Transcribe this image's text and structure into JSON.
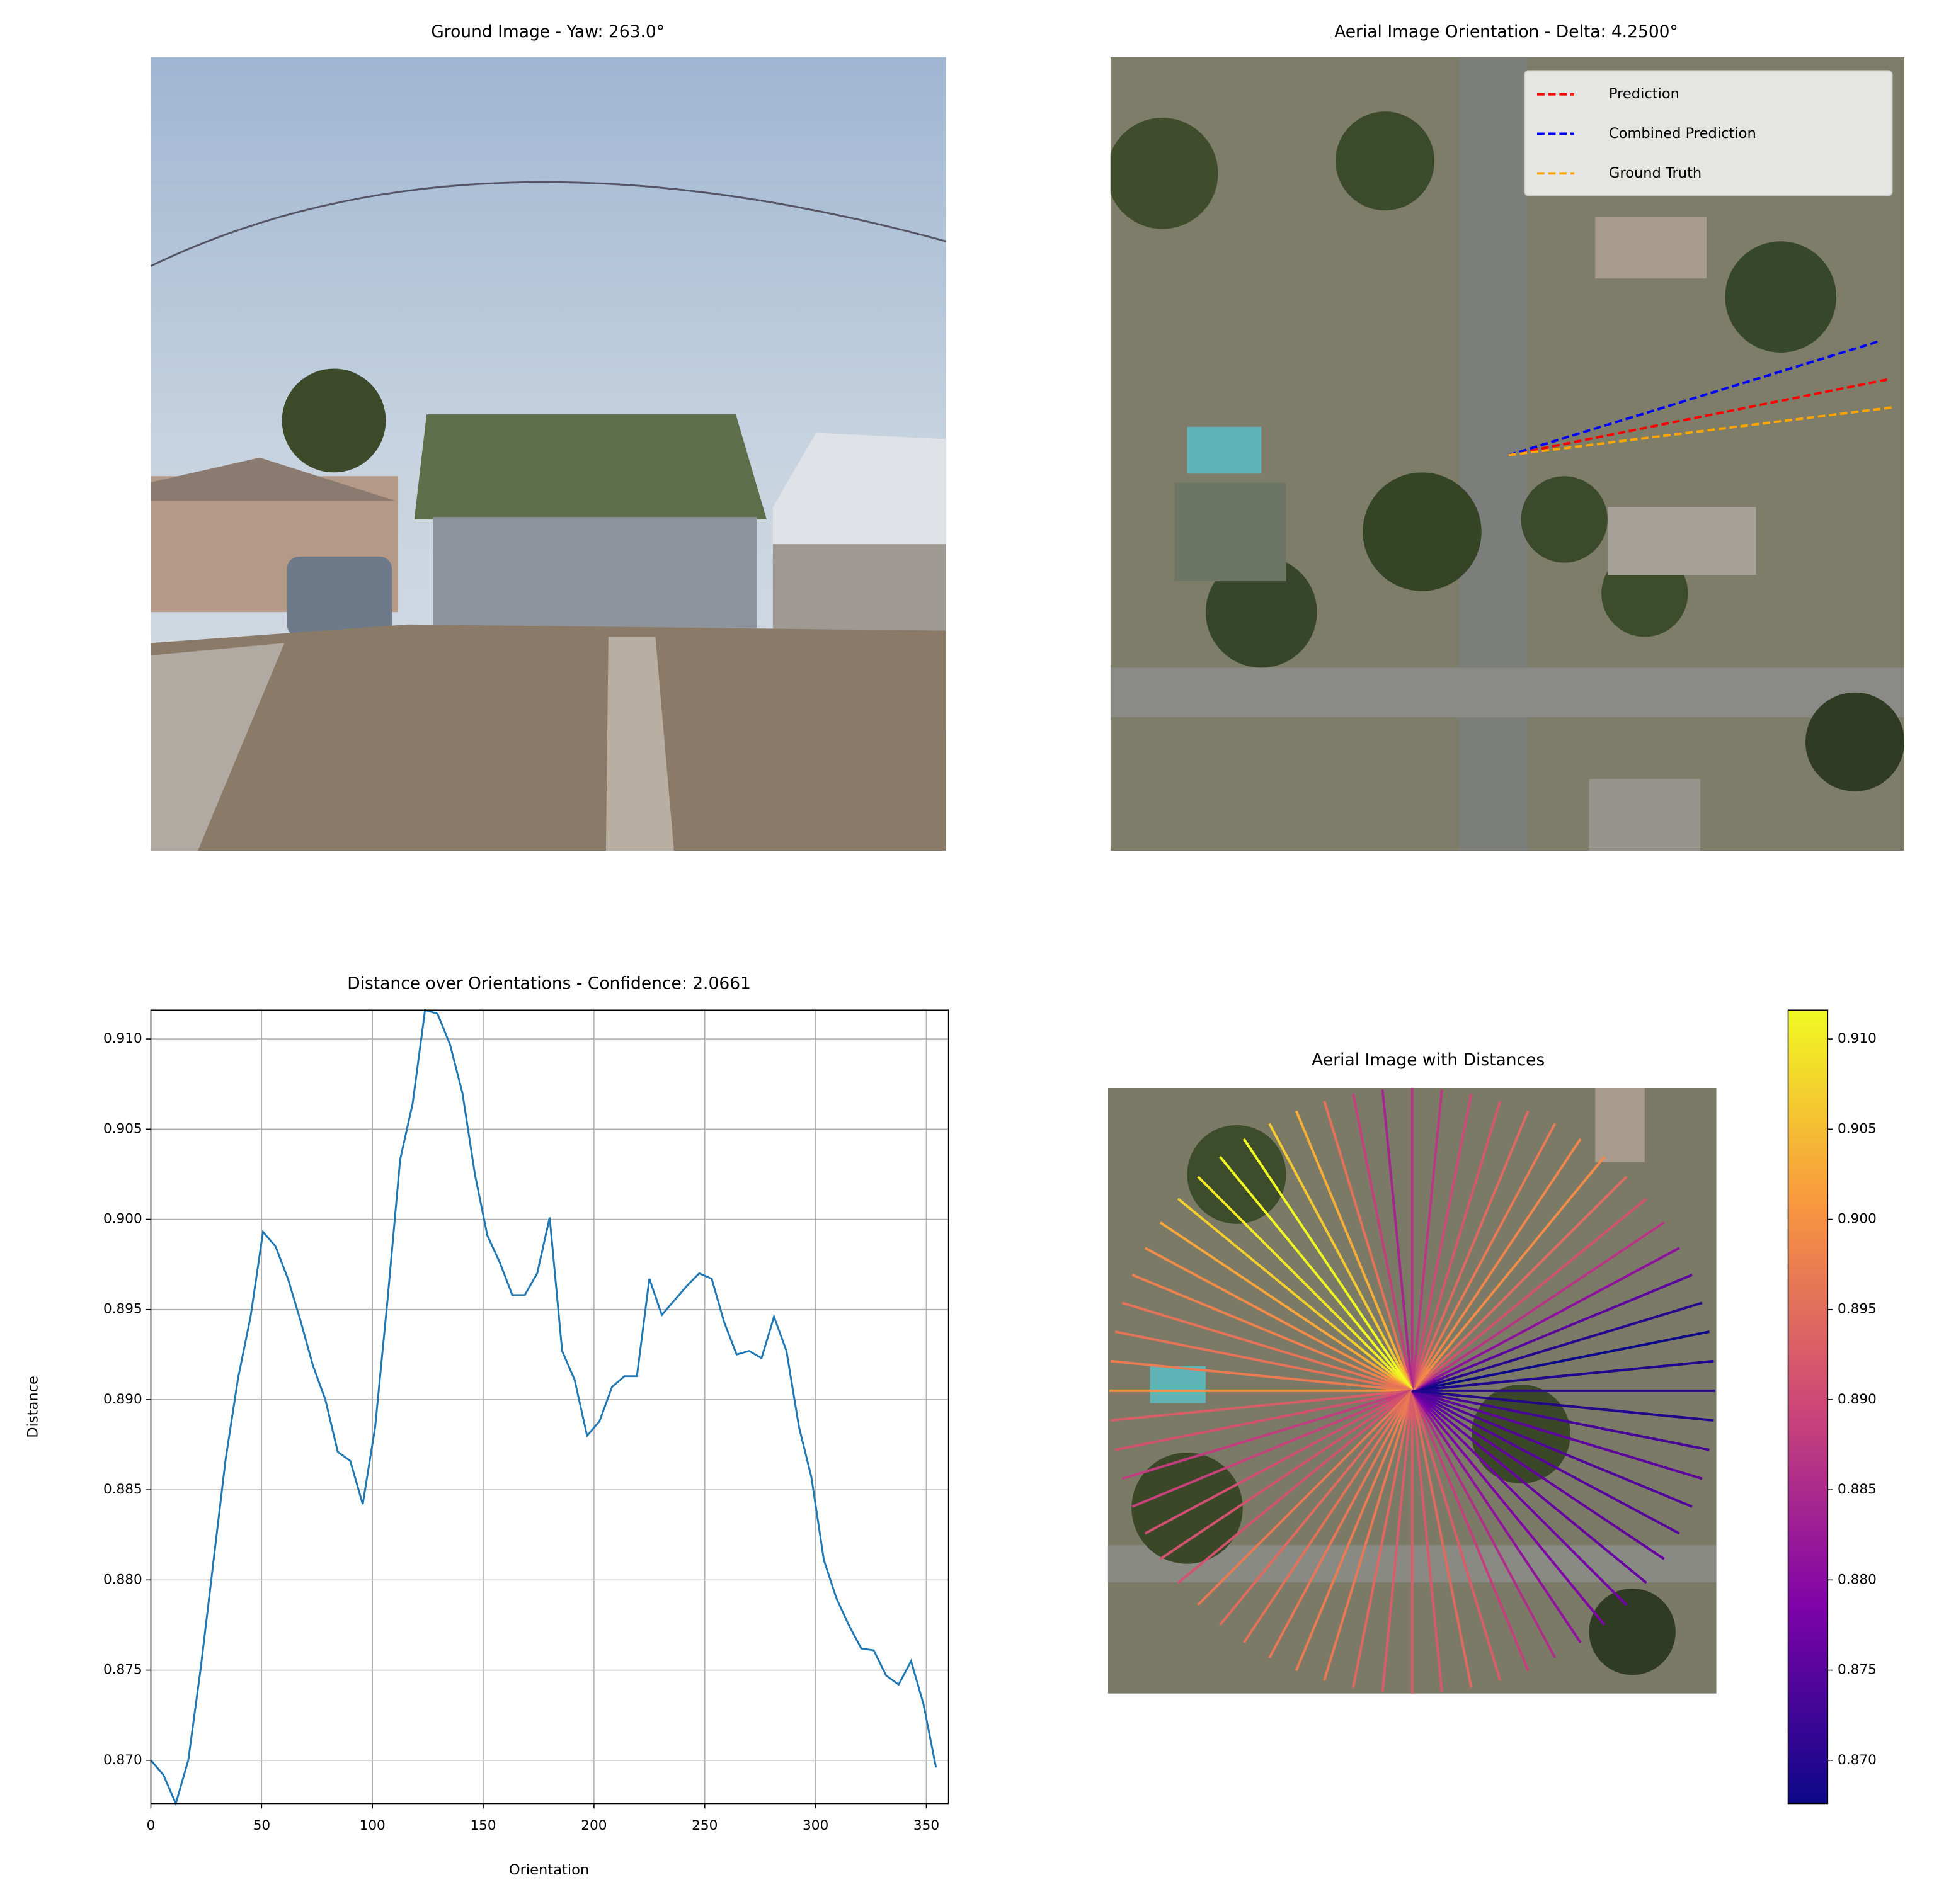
{
  "chart_data": [
    {
      "type": "image",
      "title": "Ground Image - Yaw: 263.0°"
    },
    {
      "type": "orientation",
      "title": "Aerial Image Orientation - Delta: 4.2500°",
      "legend": "upper right",
      "series": [
        {
          "name": "Prediction",
          "color": "#ff0000",
          "values": [
            11.3
          ]
        },
        {
          "name": "Combined Prediction",
          "color": "#0000ff",
          "values": [
            17.1
          ]
        },
        {
          "name": "Ground Truth",
          "color": "#ffa500",
          "values": [
            7.1
          ]
        }
      ]
    },
    {
      "type": "line",
      "title": "Distance over Orientations - Confidence: 2.0661",
      "xlabel": "Orientation",
      "ylabel": "Distance",
      "color": "#1f77b4",
      "grid": true,
      "x": [
        0,
        5.625,
        11.25,
        16.875,
        22.5,
        28.125,
        33.75,
        39.375,
        45,
        50.625,
        56.25,
        61.875,
        67.5,
        73.125,
        78.75,
        84.375,
        90,
        95.625,
        101.25,
        106.875,
        112.5,
        118.125,
        123.75,
        129.375,
        135,
        140.625,
        146.25,
        151.875,
        157.5,
        163.125,
        168.75,
        174.375,
        180,
        185.625,
        191.25,
        196.875,
        202.5,
        208.125,
        213.75,
        219.375,
        225,
        230.625,
        236.25,
        241.875,
        247.5,
        253.125,
        258.75,
        264.375,
        270,
        275.625,
        281.25,
        286.875,
        292.5,
        298.125,
        303.75,
        309.375,
        315,
        320.625,
        326.25,
        331.875,
        337.5,
        343.125,
        348.75,
        354.375
      ],
      "values": [
        0.87,
        0.8692,
        0.8676,
        0.87,
        0.8751,
        0.8809,
        0.8867,
        0.8912,
        0.8946,
        0.8993,
        0.8985,
        0.8967,
        0.8944,
        0.8919,
        0.89,
        0.8871,
        0.8866,
        0.8842,
        0.8885,
        0.8956,
        0.9033,
        0.9064,
        0.9116,
        0.9114,
        0.9097,
        0.907,
        0.9025,
        0.8991,
        0.8976,
        0.8958,
        0.8958,
        0.897,
        0.9001,
        0.8927,
        0.8911,
        0.888,
        0.8888,
        0.8907,
        0.8913,
        0.8913,
        0.8967,
        0.8947,
        0.8955,
        0.8963,
        0.897,
        0.8967,
        0.8943,
        0.8925,
        0.8927,
        0.8923,
        0.8946,
        0.8927,
        0.8885,
        0.8857,
        0.8811,
        0.879,
        0.8775,
        0.8762,
        0.8761,
        0.8747,
        0.8742,
        0.8755,
        0.8731,
        0.8696
      ],
      "xlim": [
        0,
        360
      ],
      "ylim": [
        0.8676,
        0.9116
      ],
      "xticks": [
        0,
        50,
        100,
        150,
        200,
        250,
        300,
        350
      ],
      "yticks": [
        {
          "value": 0.87,
          "label": "0.870"
        },
        0.875,
        {
          "value": 0.88,
          "label": "0.880"
        },
        0.885,
        {
          "value": 0.89,
          "label": "0.890"
        },
        0.895,
        {
          "value": 0.9,
          "label": "0.900"
        },
        0.905,
        {
          "value": 0.91,
          "label": "0.910"
        }
      ]
    },
    {
      "type": "radial",
      "title": "Aerial Image with Distances",
      "colormap": "plasma",
      "clim": [
        0.8676,
        0.9116
      ],
      "cticks": [
        {
          "value": 0.87,
          "label": "0.870"
        },
        0.875,
        {
          "value": 0.88,
          "label": "0.880"
        },
        0.885,
        {
          "value": 0.89,
          "label": "0.890"
        },
        0.895,
        {
          "value": 0.9,
          "label": "0.900"
        },
        0.905,
        {
          "value": 0.91,
          "label": "0.910"
        }
      ]
    }
  ]
}
